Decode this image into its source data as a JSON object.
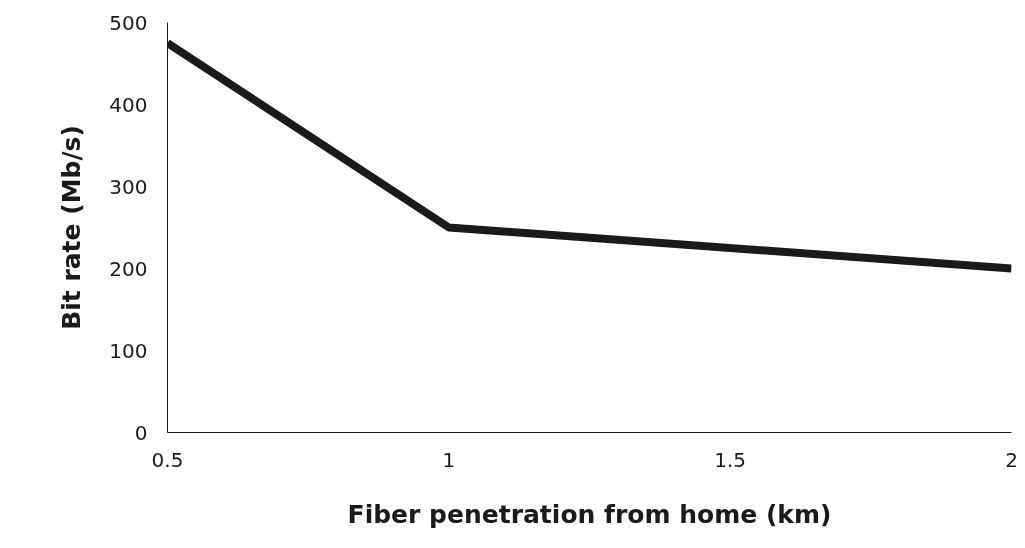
{
  "chart_data": {
    "type": "line",
    "xlabel": "Fiber penetration from home (km)",
    "ylabel": "Bit rate (Mb/s)",
    "x": [
      0.5,
      1,
      2
    ],
    "series": [
      {
        "color": "#1a1a1a",
        "values": [
          475,
          250,
          200
        ]
      }
    ],
    "xlim": [
      0.5,
      2
    ],
    "xticks": [
      0.5,
      1,
      1.5,
      2
    ],
    "ylim": [
      0,
      500
    ],
    "yticks": [
      0,
      100,
      200,
      300,
      400,
      500
    ],
    "grid": false,
    "marker": "none",
    "line_style": "solid"
  }
}
